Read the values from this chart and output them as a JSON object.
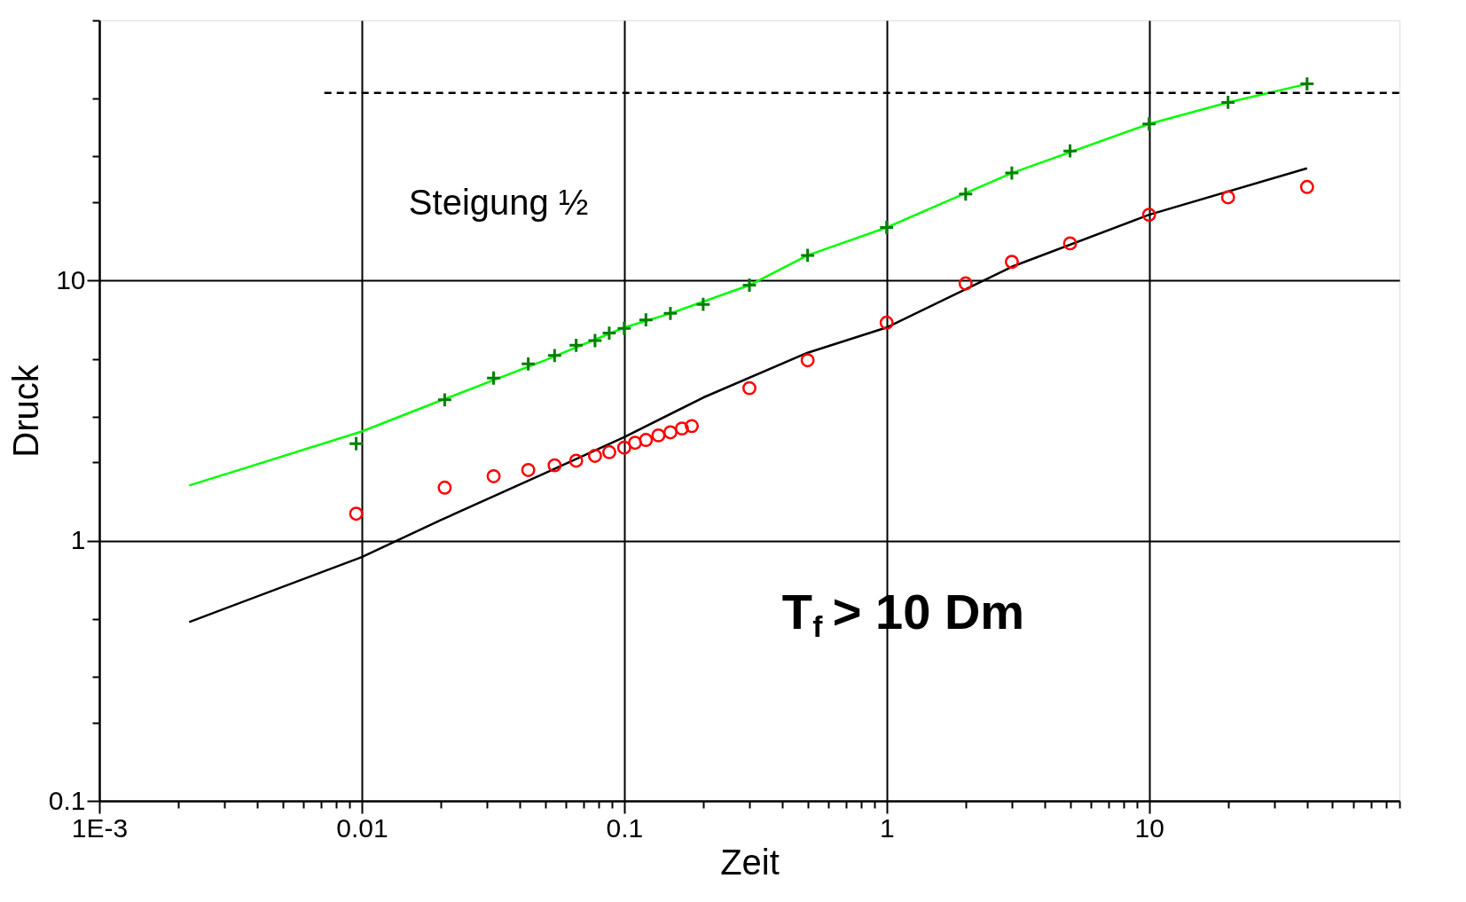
{
  "chart_data": {
    "type": "scatter",
    "xlabel": "Zeit",
    "ylabel": "Druck",
    "log": "xy",
    "grid": true,
    "xlim": [
      0.001,
      90
    ],
    "ylim": [
      0.1,
      100
    ],
    "xticks": [
      {
        "value": 0.001,
        "label": "1E-3"
      },
      {
        "value": 0.002,
        "label": null
      },
      {
        "value": 0.003,
        "label": null
      },
      {
        "value": 0.004,
        "label": null
      },
      {
        "value": 0.005,
        "label": null
      },
      {
        "value": 0.006,
        "label": null
      },
      {
        "value": 0.007,
        "label": null
      },
      {
        "value": 0.008,
        "label": null
      },
      {
        "value": 0.009,
        "label": null
      },
      0.01,
      {
        "value": 0.02,
        "label": null
      },
      {
        "value": 0.03,
        "label": null
      },
      {
        "value": 0.04,
        "label": null
      },
      {
        "value": 0.05,
        "label": null
      },
      {
        "value": 0.06,
        "label": null
      },
      {
        "value": 0.07,
        "label": null
      },
      {
        "value": 0.08,
        "label": null
      },
      {
        "value": 0.09,
        "label": null
      },
      0.1,
      {
        "value": 0.2,
        "label": null
      },
      {
        "value": 0.3,
        "label": null
      },
      {
        "value": 0.4,
        "label": null
      },
      {
        "value": 0.5,
        "label": null
      },
      {
        "value": 0.6,
        "label": null
      },
      {
        "value": 0.7,
        "label": null
      },
      {
        "value": 0.8,
        "label": null
      },
      {
        "value": 0.9,
        "label": null
      },
      1,
      {
        "value": 2,
        "label": null
      },
      {
        "value": 3,
        "label": null
      },
      {
        "value": 4,
        "label": null
      },
      {
        "value": 5,
        "label": null
      },
      {
        "value": 6,
        "label": null
      },
      {
        "value": 7,
        "label": null
      },
      {
        "value": 8,
        "label": null
      },
      {
        "value": 9,
        "label": null
      },
      10,
      {
        "value": 20,
        "label": null
      },
      {
        "value": 30,
        "label": null
      },
      {
        "value": 40,
        "label": null
      },
      {
        "value": 50,
        "label": null
      },
      {
        "value": 60,
        "label": null
      },
      {
        "value": 70,
        "label": null
      },
      {
        "value": 80,
        "label": null
      },
      {
        "value": 90,
        "label": null
      }
    ],
    "yticks": [
      0.1,
      {
        "value": 0.2,
        "label": null
      },
      {
        "value": 0.3,
        "label": null
      },
      {
        "value": 0.5,
        "label": null
      },
      1,
      {
        "value": 2,
        "label": null
      },
      {
        "value": 3,
        "label": null
      },
      {
        "value": 5,
        "label": null
      },
      10,
      {
        "value": 20,
        "label": null
      },
      {
        "value": 30,
        "label": null
      },
      {
        "value": 50,
        "label": null
      },
      {
        "value": 100,
        "label": null
      }
    ],
    "series": [
      {
        "type": "line",
        "color": "#00ff00",
        "marker": "none",
        "line_style": "solid",
        "x": [
          0.0022,
          0.01,
          0.02,
          0.05,
          0.1,
          0.15,
          0.3,
          0.5,
          1,
          3,
          10,
          20,
          40
        ],
        "values": [
          1.63,
          2.63,
          3.46,
          4.94,
          6.6,
          7.48,
          9.6,
          12.5,
          16.0,
          25.9,
          40,
          48.4,
          57
        ]
      },
      {
        "color": "#007f00",
        "marker": "cross",
        "x": [
          0.00952,
          0.0207,
          0.0318,
          0.0431,
          0.0543,
          0.0656,
          0.0774,
          0.0877,
          0.1,
          0.121,
          0.15,
          0.2,
          0.3,
          0.5,
          1,
          2,
          3,
          5,
          10,
          20,
          40
        ],
        "values": [
          2.36,
          3.48,
          4.22,
          4.78,
          5.15,
          5.64,
          5.88,
          6.28,
          6.55,
          7.06,
          7.48,
          8.1,
          9.6,
          12.5,
          16.0,
          21.5,
          25.9,
          31.5,
          40,
          48.4,
          57
        ]
      },
      {
        "type": "line",
        "color": "#000000",
        "marker": "none",
        "line_style": "solid",
        "x": [
          0.0022,
          0.01,
          0.02,
          0.05,
          0.1,
          0.2,
          0.5,
          1,
          3,
          10,
          40
        ],
        "values": [
          0.487,
          0.865,
          1.2,
          1.82,
          2.5,
          3.55,
          5.28,
          6.6,
          11.3,
          17.9,
          27.0
        ]
      },
      {
        "color": "#ff0000",
        "marker": "circle",
        "x": [
          0.00952,
          0.0207,
          0.0318,
          0.0431,
          0.0543,
          0.0656,
          0.0774,
          0.0877,
          0.1,
          0.11,
          0.121,
          0.135,
          0.15,
          0.166,
          0.181,
          0.3,
          0.5,
          1,
          2,
          3,
          5,
          10,
          20,
          40
        ],
        "values": [
          1.27,
          1.6,
          1.77,
          1.87,
          1.95,
          2.03,
          2.12,
          2.19,
          2.28,
          2.38,
          2.44,
          2.54,
          2.61,
          2.7,
          2.76,
          3.86,
          4.94,
          6.89,
          9.75,
          11.8,
          13.9,
          17.9,
          20.9,
          22.9
        ]
      },
      {
        "type": "line",
        "color": "#000000",
        "marker": "none",
        "line_style": "dashed",
        "x": [
          0.0072,
          90
        ],
        "values": [
          52.6,
          52.6
        ]
      }
    ],
    "annotations": [
      "Steigung ½",
      "T$_{f}$ > 10 Dm"
    ]
  }
}
